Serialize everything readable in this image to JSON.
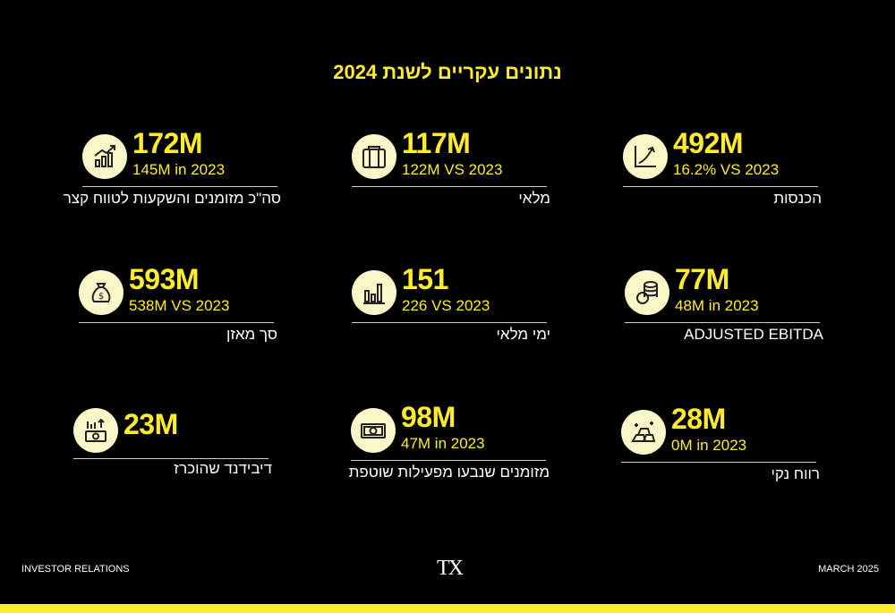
{
  "title": "נתונים עקריים לשנת 2024",
  "colors": {
    "accent": "#ffed2b",
    "icon_bg": "#fbf7c9",
    "background": "#000000"
  },
  "cards": [
    {
      "icon": "trending-chart-icon",
      "value": "172M",
      "compare": "145M in 2023",
      "label": "סה\"כ מזומנים והשקעות לטווח קצר"
    },
    {
      "icon": "inventory-boxes-icon",
      "value": "117M",
      "compare": "122M VS 2023",
      "label": "מלאי"
    },
    {
      "icon": "growth-arrow-icon",
      "value": "492M",
      "compare": "16.2% VS 2023",
      "label": "הכנסות"
    },
    {
      "icon": "money-bag-icon",
      "value": "593M",
      "compare": "538M VS 2023",
      "label": "סך מאזן"
    },
    {
      "icon": "bar-chart-icon",
      "value": "151",
      "compare": "226 VS 2023",
      "label": "ימי מלאי"
    },
    {
      "icon": "coins-stack-icon",
      "value": "77M",
      "compare": "48M in 2023",
      "label": "ADJUSTED EBITDA"
    },
    {
      "icon": "dividend-cash-icon",
      "value": "23M",
      "compare": "",
      "label": "דיבידנד שהוכרז"
    },
    {
      "icon": "banknote-icon",
      "value": "98M",
      "compare": "47M in 2023",
      "label": "מזומנים שנבעו מפעילות שוטפת"
    },
    {
      "icon": "gold-bars-icon",
      "value": "28M",
      "compare": "0M in 2023",
      "label": "רווח נקי"
    }
  ],
  "footer": {
    "left": "INVESTOR RELATIONS",
    "logo": "TX",
    "right": "MARCH 2025"
  }
}
